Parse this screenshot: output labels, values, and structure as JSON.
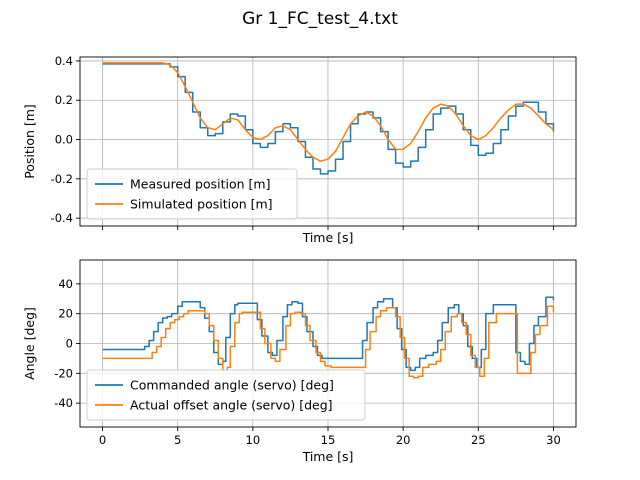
{
  "figure": {
    "title": "Gr 1_FC_test_4.txt"
  },
  "chart_data": [
    {
      "type": "line",
      "xlabel": "Time [s]",
      "ylabel": "Position [m]",
      "xlim": [
        -1.5,
        31.5
      ],
      "ylim": [
        -0.44,
        0.42
      ],
      "xticks": [
        0,
        5,
        10,
        15,
        20,
        25,
        30
      ],
      "show_xtick_labels": false,
      "yticks": [
        -0.4,
        -0.2,
        0.0,
        0.2,
        0.4
      ],
      "ytick_labels": [
        "-0.4",
        "-0.2",
        "0.0",
        "0.2",
        "0.4"
      ],
      "grid": true,
      "legend": "lower-left",
      "series": [
        {
          "name": "Measured position [m]",
          "color": "#1f77b4",
          "step": true,
          "x": [
            0,
            2,
            4.0,
            4.5,
            5.0,
            5.5,
            6.0,
            6.5,
            7.0,
            7.5,
            8.0,
            8.5,
            9.0,
            9.5,
            10.0,
            10.5,
            11.0,
            11.5,
            12.0,
            12.5,
            13.0,
            13.5,
            14.0,
            14.5,
            15.0,
            15.5,
            16.0,
            16.5,
            17.0,
            17.5,
            18.0,
            18.5,
            19.0,
            19.5,
            20.0,
            20.5,
            21.0,
            21.5,
            22.0,
            22.5,
            23.0,
            23.5,
            24.0,
            24.5,
            25.0,
            25.5,
            26.0,
            26.5,
            27.0,
            27.5,
            28.0,
            28.5,
            29.0,
            29.5,
            30.0
          ],
          "y": [
            0.385,
            0.385,
            0.385,
            0.37,
            0.32,
            0.24,
            0.14,
            0.06,
            0.02,
            0.03,
            0.09,
            0.13,
            0.12,
            0.05,
            -0.02,
            -0.04,
            -0.02,
            0.04,
            0.08,
            0.06,
            -0.01,
            -0.09,
            -0.15,
            -0.175,
            -0.16,
            -0.1,
            -0.01,
            0.08,
            0.13,
            0.14,
            0.11,
            0.04,
            -0.05,
            -0.12,
            -0.14,
            -0.11,
            -0.04,
            0.05,
            0.13,
            0.16,
            0.17,
            0.13,
            0.05,
            -0.03,
            -0.08,
            -0.07,
            -0.02,
            0.05,
            0.12,
            0.17,
            0.19,
            0.19,
            0.14,
            0.08,
            0.04
          ]
        },
        {
          "name": "Simulated position [m]",
          "color": "#ff7f0e",
          "step": false,
          "x": [
            0,
            2,
            4.0,
            4.5,
            5.0,
            5.5,
            6.0,
            6.5,
            7.0,
            7.5,
            8.0,
            8.5,
            9.0,
            9.5,
            10.0,
            10.5,
            11.0,
            11.5,
            12.0,
            12.5,
            13.0,
            13.5,
            14.0,
            14.5,
            15.0,
            15.5,
            16.0,
            16.5,
            17.0,
            17.5,
            18.0,
            18.5,
            19.0,
            19.5,
            20.0,
            20.5,
            21.0,
            21.5,
            22.0,
            22.5,
            23.0,
            23.5,
            24.0,
            24.5,
            25.0,
            25.5,
            26.0,
            26.5,
            27.0,
            27.5,
            28.0,
            28.5,
            29.0,
            29.5,
            30.0
          ],
          "y": [
            0.39,
            0.39,
            0.39,
            0.38,
            0.34,
            0.27,
            0.19,
            0.11,
            0.06,
            0.05,
            0.08,
            0.11,
            0.1,
            0.05,
            0.01,
            0.0,
            0.02,
            0.06,
            0.07,
            0.05,
            0.0,
            -0.05,
            -0.09,
            -0.11,
            -0.1,
            -0.06,
            0.01,
            0.08,
            0.12,
            0.14,
            0.12,
            0.07,
            0.0,
            -0.05,
            -0.05,
            -0.02,
            0.04,
            0.11,
            0.16,
            0.18,
            0.17,
            0.13,
            0.07,
            0.02,
            0.0,
            0.02,
            0.06,
            0.11,
            0.15,
            0.18,
            0.18,
            0.16,
            0.12,
            0.08,
            0.05
          ]
        }
      ]
    },
    {
      "type": "line",
      "xlabel": "Time [s]",
      "ylabel": "Angle [deg]",
      "xlim": [
        -1.5,
        31.5
      ],
      "ylim": [
        -56,
        56
      ],
      "xticks": [
        0,
        5,
        10,
        15,
        20,
        25,
        30
      ],
      "xtick_labels": [
        "0",
        "5",
        "10",
        "15",
        "20",
        "25",
        "30"
      ],
      "show_xtick_labels": true,
      "yticks": [
        -40,
        -20,
        0,
        20,
        40
      ],
      "ytick_labels": [
        "-40",
        "-20",
        "0",
        "20",
        "40"
      ],
      "grid": true,
      "legend": "lower-left",
      "series": [
        {
          "name": "Commanded angle (servo) [deg]",
          "color": "#1f77b4",
          "step": true,
          "x": [
            0,
            2.5,
            2.8,
            3.1,
            3.4,
            3.7,
            4.0,
            4.3,
            4.6,
            5.0,
            5.3,
            5.6,
            6.5,
            6.8,
            7.1,
            7.4,
            7.7,
            8.0,
            8.2,
            8.5,
            8.8,
            9.0,
            10.0,
            10.3,
            10.6,
            11.0,
            11.3,
            11.6,
            12.0,
            12.3,
            12.6,
            13.0,
            13.3,
            13.6,
            14.0,
            14.3,
            14.6,
            15.0,
            15.3,
            16.0,
            17.0,
            17.3,
            17.6,
            18.0,
            18.3,
            18.7,
            19.3,
            19.6,
            19.9,
            20.2,
            20.5,
            20.8,
            21.1,
            21.5,
            22.0,
            22.3,
            22.6,
            23.0,
            23.4,
            23.7,
            24.0,
            24.3,
            24.6,
            24.9,
            25.2,
            25.5,
            26.0,
            27.3,
            27.5,
            27.8,
            28.1,
            28.4,
            28.7,
            29.0,
            29.5,
            30.0
          ],
          "y": [
            -4,
            -4,
            -2,
            2,
            8,
            14,
            17,
            18,
            20,
            25,
            28,
            28,
            24,
            17,
            8,
            -6,
            -14,
            -12,
            4,
            20,
            26,
            27,
            27,
            16,
            5,
            -6,
            -8,
            2,
            18,
            26,
            28,
            27,
            18,
            8,
            -2,
            -8,
            -10,
            -10,
            -10,
            -10,
            -10,
            2,
            14,
            24,
            28,
            30,
            24,
            10,
            -4,
            -16,
            -18,
            -16,
            -10,
            -8,
            -6,
            2,
            14,
            24,
            26,
            20,
            12,
            -2,
            -10,
            -16,
            -4,
            20,
            26,
            26,
            -6,
            -12,
            -14,
            0,
            12,
            18,
            31,
            29
          ]
        },
        {
          "name": "Actual offset angle (servo) [deg]",
          "color": "#ff7f0e",
          "step": true,
          "x": [
            0,
            3.0,
            3.3,
            3.6,
            3.9,
            4.2,
            4.5,
            4.8,
            5.1,
            5.4,
            5.7,
            6.8,
            7.1,
            7.4,
            7.7,
            8.0,
            8.3,
            8.5,
            8.8,
            9.1,
            9.3,
            10.2,
            10.5,
            10.8,
            11.2,
            11.5,
            11.8,
            12.2,
            12.5,
            12.8,
            13.2,
            13.5,
            13.8,
            14.2,
            14.5,
            14.8,
            15.2,
            15.5,
            16.3,
            17.2,
            17.5,
            17.8,
            18.2,
            18.5,
            18.9,
            19.5,
            19.8,
            20.1,
            20.4,
            20.7,
            21.0,
            21.3,
            21.7,
            22.2,
            22.5,
            22.8,
            23.2,
            23.6,
            23.9,
            24.2,
            24.5,
            24.8,
            25.1,
            25.4,
            25.7,
            26.2,
            27.4,
            27.6,
            27.9,
            28.2,
            28.5,
            28.8,
            29.1,
            29.6,
            30.0
          ],
          "y": [
            -10,
            -10,
            -6,
            -2,
            4,
            10,
            14,
            16,
            18,
            20,
            22,
            20,
            12,
            2,
            -10,
            -18,
            -16,
            -2,
            14,
            20,
            21,
            21,
            10,
            0,
            -10,
            -12,
            -4,
            12,
            20,
            21,
            20,
            12,
            2,
            -6,
            -12,
            -15,
            -16,
            -16,
            -16,
            -16,
            -4,
            8,
            18,
            22,
            24,
            18,
            4,
            -10,
            -22,
            -23,
            -22,
            -16,
            -14,
            -12,
            -4,
            8,
            18,
            20,
            14,
            6,
            -8,
            -16,
            -22,
            -10,
            14,
            20,
            20,
            -20,
            -20,
            -20,
            -6,
            6,
            12,
            25,
            21
          ]
        }
      ]
    }
  ]
}
